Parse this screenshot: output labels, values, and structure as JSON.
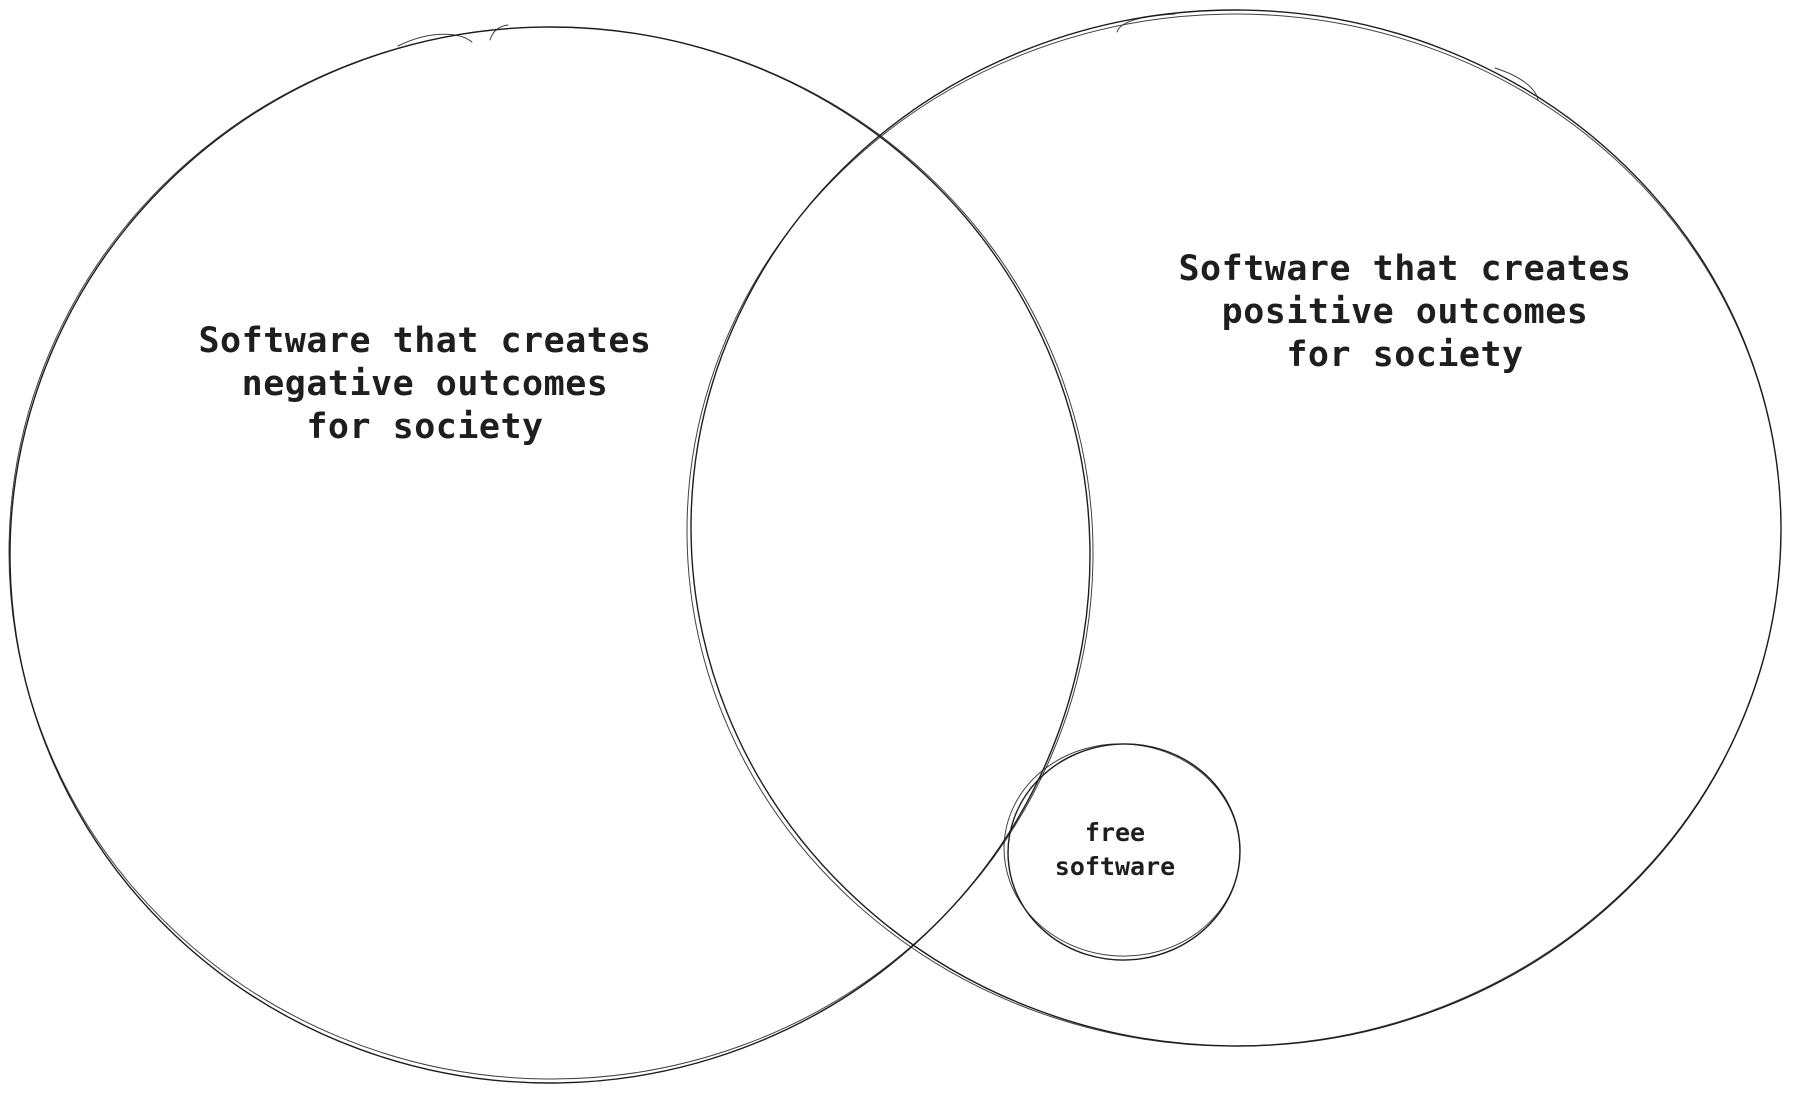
{
  "diagram": {
    "type": "venn",
    "sets": [
      {
        "id": "negative",
        "lines": [
          "Software that creates",
          "negative outcomes",
          "for society"
        ]
      },
      {
        "id": "positive",
        "lines": [
          "Software that creates",
          "positive outcomes",
          "for society"
        ]
      },
      {
        "id": "free",
        "lines": [
          "free",
          "software"
        ]
      }
    ],
    "stroke_color": "#1e1e1e",
    "background_color": "#ffffff"
  }
}
